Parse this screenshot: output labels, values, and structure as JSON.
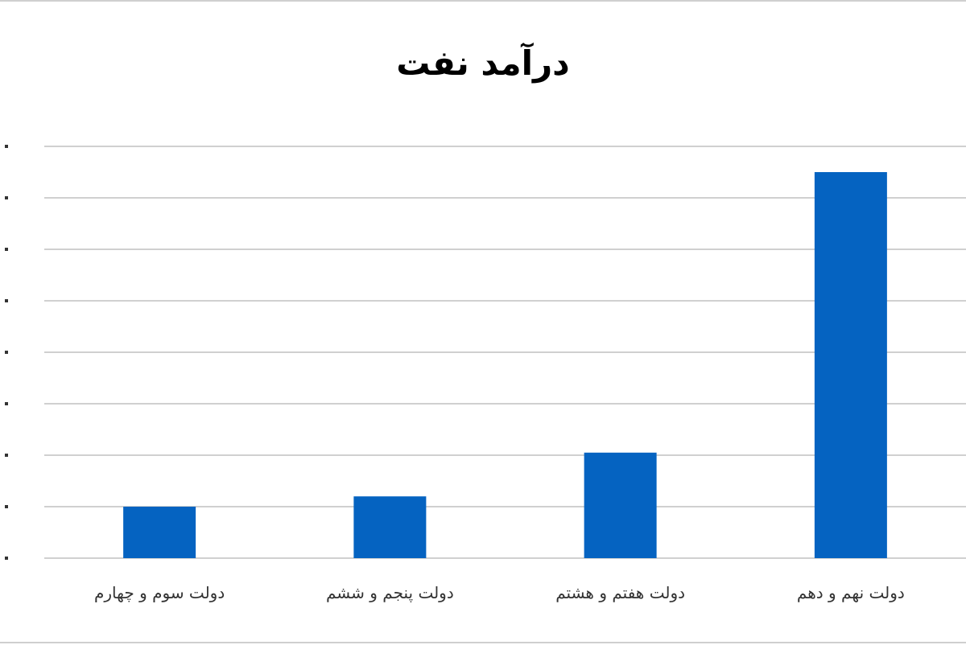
{
  "chart_data": {
    "type": "bar",
    "title": "درآمد نفت",
    "categories": [
      "دولت سوم و چهارم",
      "دولت پنجم و ششم",
      "دولت هفتم و هشتم",
      "دولت نهم و دهم"
    ],
    "values": [
      1,
      1.2,
      2.05,
      7.5
    ],
    "ylim": [
      0,
      8
    ],
    "grid": true,
    "legend": "none",
    "bar_color": "#0563c1",
    "gridline_color": "#d0d0d0"
  }
}
